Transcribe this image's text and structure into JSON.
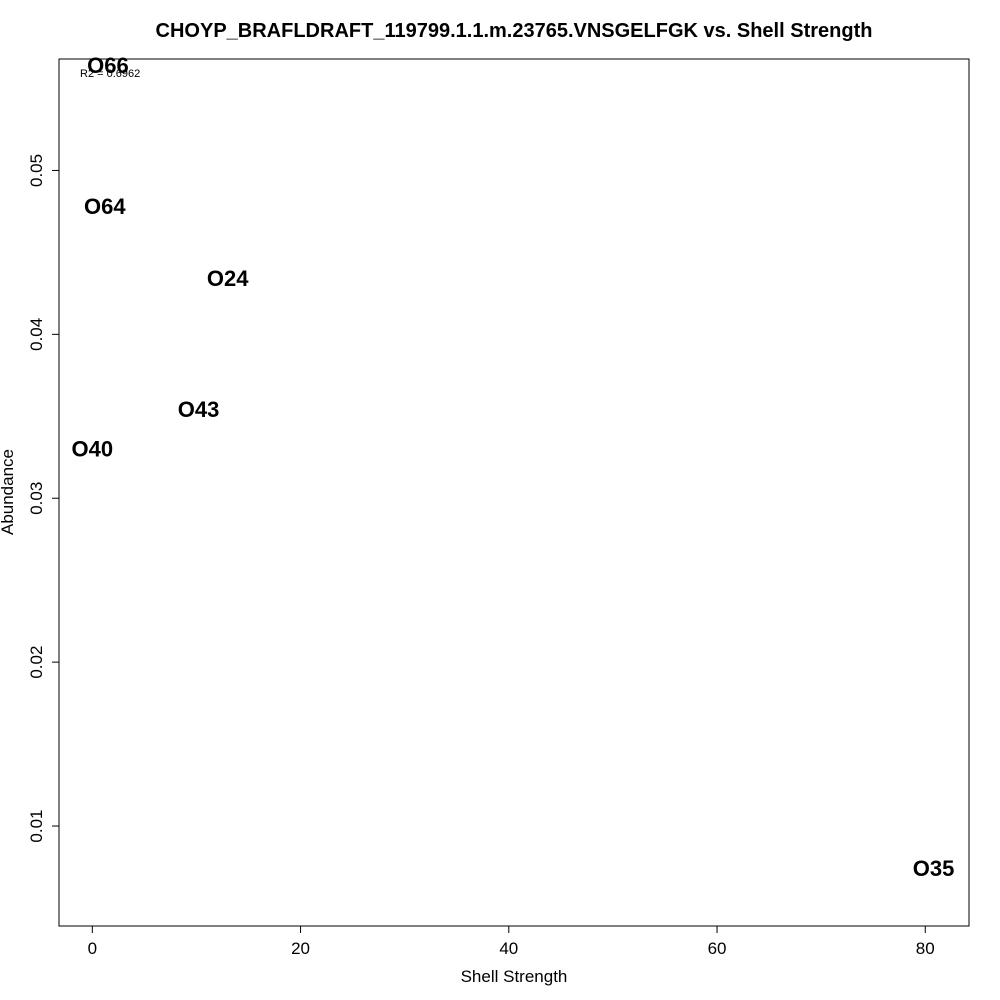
{
  "chart_data": {
    "type": "scatter",
    "title": "CHOYP_BRAFLDRAFT_119799.1.1.m.23765.VNSGELFGK vs. Shell Strength",
    "xlabel": "Shell Strength",
    "ylabel": "Abundance",
    "annotation": "R2 = 0.6962",
    "xlim": [
      -3.2,
      84.2
    ],
    "ylim": [
      0.0039,
      0.0568
    ],
    "x_ticks": [
      0,
      20,
      40,
      60,
      80
    ],
    "y_ticks": [
      0.01,
      0.02,
      0.03,
      0.04,
      0.05
    ],
    "y_tick_labels": [
      "0.01",
      "0.02",
      "0.03",
      "0.04",
      "0.05"
    ],
    "grid": false,
    "points": [
      {
        "label": "O66",
        "x": 1.5,
        "y": 0.0564
      },
      {
        "label": "O64",
        "x": 1.2,
        "y": 0.0478
      },
      {
        "label": "O24",
        "x": 13.0,
        "y": 0.0434
      },
      {
        "label": "O43",
        "x": 10.2,
        "y": 0.0354
      },
      {
        "label": "O40",
        "x": 0.0,
        "y": 0.033
      },
      {
        "label": "O35",
        "x": 80.8,
        "y": 0.0074
      }
    ]
  }
}
